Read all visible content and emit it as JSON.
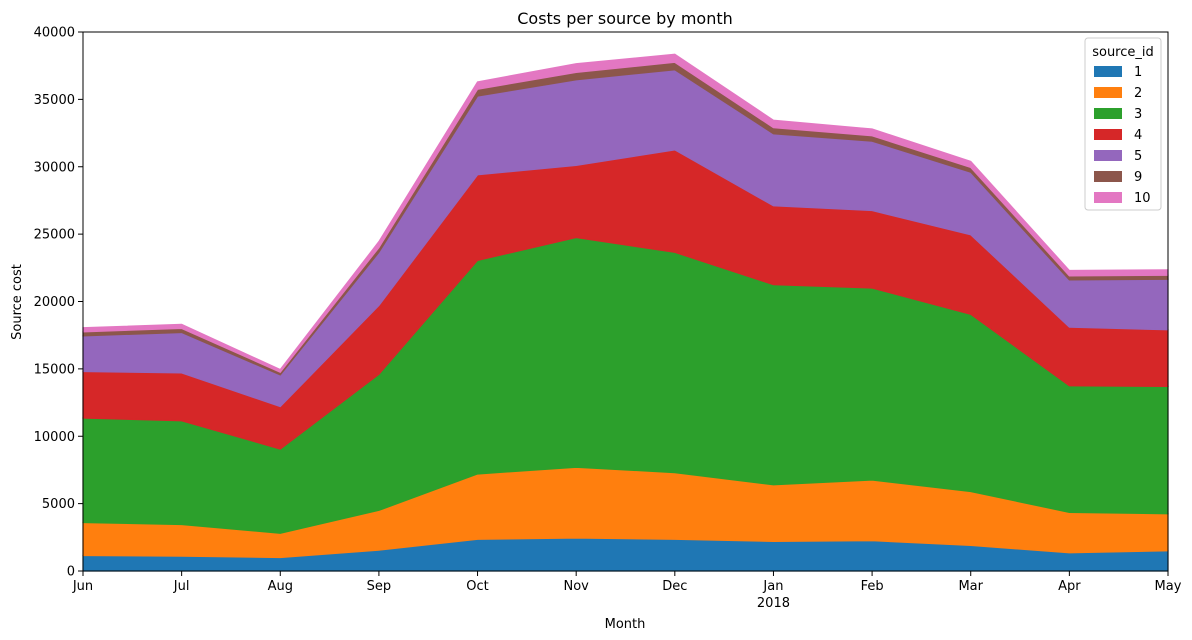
{
  "chart_data": {
    "type": "area",
    "stacked": true,
    "title": "Costs per source by month",
    "xlabel": "Month",
    "ylabel": "Source cost",
    "categories": [
      "Jun",
      "Jul",
      "Aug",
      "Sep",
      "Oct",
      "Nov",
      "Dec",
      "Jan",
      "Feb",
      "Mar",
      "Apr",
      "May"
    ],
    "year_marker": {
      "category": "Jan",
      "label": "2018"
    },
    "ylim": [
      0,
      40000
    ],
    "yticks": [
      0,
      5000,
      10000,
      15000,
      20000,
      25000,
      30000,
      35000,
      40000
    ],
    "grid": false,
    "legend": {
      "title": "source_id",
      "placement": "top-right"
    },
    "series": [
      {
        "name": "1",
        "color": "#1f77b4",
        "values": [
          1150,
          1100,
          1000,
          1550,
          2350,
          2450,
          2350,
          2200,
          2250,
          1900,
          1350,
          1500
        ]
      },
      {
        "name": "2",
        "color": "#ff7f0e",
        "values": [
          2450,
          2350,
          1800,
          2950,
          4850,
          5250,
          4950,
          4200,
          4500,
          4000,
          3000,
          2750
        ]
      },
      {
        "name": "3",
        "color": "#2ca02c",
        "values": [
          7750,
          7700,
          6250,
          10100,
          15850,
          17050,
          16350,
          14850,
          14250,
          13150,
          9400,
          9450
        ]
      },
      {
        "name": "4",
        "color": "#d62728",
        "values": [
          3450,
          3550,
          3150,
          5100,
          6350,
          5350,
          7600,
          5850,
          5750,
          5900,
          4350,
          4200
        ]
      },
      {
        "name": "5",
        "color": "#9467bd",
        "values": [
          2650,
          3000,
          2350,
          3950,
          5850,
          6350,
          5950,
          5350,
          5150,
          4650,
          3500,
          3750
        ]
      },
      {
        "name": "9",
        "color": "#8c564b",
        "values": [
          300,
          300,
          200,
          350,
          500,
          550,
          550,
          450,
          400,
          350,
          300,
          300
        ]
      },
      {
        "name": "10",
        "color": "#e377c2",
        "values": [
          300,
          300,
          200,
          450,
          550,
          650,
          600,
          550,
          500,
          450,
          400,
          400
        ]
      }
    ]
  }
}
